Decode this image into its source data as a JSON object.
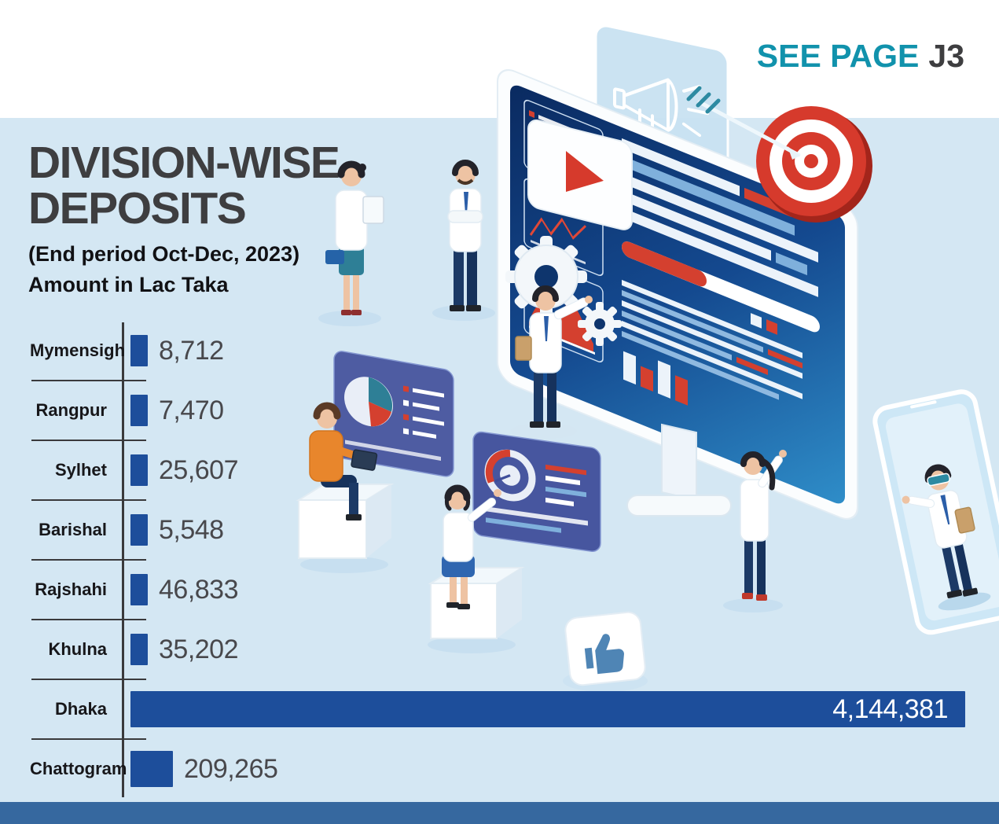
{
  "header": {
    "see_page_label": "SEE PAGE",
    "see_page_ref": "J3"
  },
  "title_block": {
    "title": "DIVISION-WISE DEPOSITS",
    "subtitle": "(End period Oct-Dec, 2023)",
    "unit_note": "Amount in Lac Taka"
  },
  "colors": {
    "background": "#d4e7f3",
    "top_band": "#ffffff",
    "bottom_band": "#36689f",
    "bar": "#1d4e9b",
    "accent_teal": "#1192ac",
    "accent_red": "#d63a2c",
    "title_text": "#3e3e40"
  },
  "chart_data": {
    "type": "bar",
    "orientation": "horizontal",
    "title": "DIVISION-WISE DEPOSITS",
    "subtitle": "(End period Oct-Dec, 2023)",
    "unit": "Lac Taka",
    "categories": [
      "Mymensigh",
      "Rangpur",
      "Sylhet",
      "Barishal",
      "Rajshahi",
      "Khulna",
      "Dhaka",
      "Chattogram"
    ],
    "values": [
      8712,
      7470,
      25607,
      5548,
      46833,
      35202,
      4144381,
      209265
    ],
    "value_labels": [
      "8,712",
      "7,470",
      "25,607",
      "5,548",
      "46,833",
      "35,202",
      "4,144,381",
      "209,265"
    ],
    "xlim": [
      0,
      4144381
    ],
    "bar_color": "#1d4e9b",
    "label_inside": [
      "Dhaka"
    ],
    "grid": false,
    "legend": false
  }
}
